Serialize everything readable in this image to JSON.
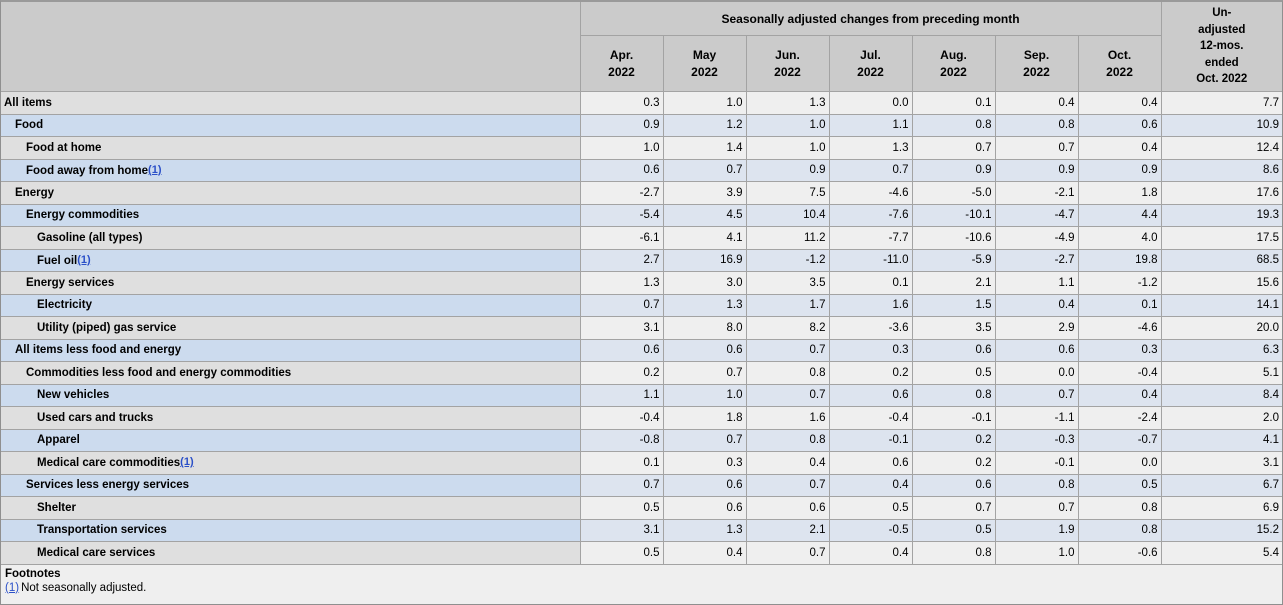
{
  "header": {
    "span_title": "Seasonally adjusted changes from preceding month",
    "months": [
      "Apr.",
      "May",
      "Jun.",
      "Jul.",
      "Aug.",
      "Sep.",
      "Oct."
    ],
    "year": "2022",
    "unadjusted_lines": [
      "Un-",
      "adjusted",
      "12-mos.",
      "ended",
      "Oct. 2022"
    ]
  },
  "rows": [
    {
      "label": "All items",
      "indent": 0,
      "footnote_marker": null,
      "values": [
        "0.3",
        "1.0",
        "1.3",
        "0.0",
        "0.1",
        "0.4",
        "0.4"
      ],
      "unadjusted_12mo": "7.7"
    },
    {
      "label": "Food",
      "indent": 1,
      "footnote_marker": null,
      "values": [
        "0.9",
        "1.2",
        "1.0",
        "1.1",
        "0.8",
        "0.8",
        "0.6"
      ],
      "unadjusted_12mo": "10.9"
    },
    {
      "label": "Food at home",
      "indent": 2,
      "footnote_marker": null,
      "values": [
        "1.0",
        "1.4",
        "1.0",
        "1.3",
        "0.7",
        "0.7",
        "0.4"
      ],
      "unadjusted_12mo": "12.4"
    },
    {
      "label": "Food away from home",
      "indent": 2,
      "footnote_marker": "(1)",
      "values": [
        "0.6",
        "0.7",
        "0.9",
        "0.7",
        "0.9",
        "0.9",
        "0.9"
      ],
      "unadjusted_12mo": "8.6"
    },
    {
      "label": "Energy",
      "indent": 1,
      "footnote_marker": null,
      "values": [
        "-2.7",
        "3.9",
        "7.5",
        "-4.6",
        "-5.0",
        "-2.1",
        "1.8"
      ],
      "unadjusted_12mo": "17.6"
    },
    {
      "label": "Energy commodities",
      "indent": 2,
      "footnote_marker": null,
      "values": [
        "-5.4",
        "4.5",
        "10.4",
        "-7.6",
        "-10.1",
        "-4.7",
        "4.4"
      ],
      "unadjusted_12mo": "19.3"
    },
    {
      "label": "Gasoline (all types)",
      "indent": 3,
      "footnote_marker": null,
      "values": [
        "-6.1",
        "4.1",
        "11.2",
        "-7.7",
        "-10.6",
        "-4.9",
        "4.0"
      ],
      "unadjusted_12mo": "17.5"
    },
    {
      "label": "Fuel oil",
      "indent": 3,
      "footnote_marker": "(1)",
      "values": [
        "2.7",
        "16.9",
        "-1.2",
        "-11.0",
        "-5.9",
        "-2.7",
        "19.8"
      ],
      "unadjusted_12mo": "68.5"
    },
    {
      "label": "Energy services",
      "indent": 2,
      "footnote_marker": null,
      "values": [
        "1.3",
        "3.0",
        "3.5",
        "0.1",
        "2.1",
        "1.1",
        "-1.2"
      ],
      "unadjusted_12mo": "15.6"
    },
    {
      "label": "Electricity",
      "indent": 3,
      "footnote_marker": null,
      "values": [
        "0.7",
        "1.3",
        "1.7",
        "1.6",
        "1.5",
        "0.4",
        "0.1"
      ],
      "unadjusted_12mo": "14.1"
    },
    {
      "label": "Utility (piped) gas service",
      "indent": 3,
      "footnote_marker": null,
      "values": [
        "3.1",
        "8.0",
        "8.2",
        "-3.6",
        "3.5",
        "2.9",
        "-4.6"
      ],
      "unadjusted_12mo": "20.0"
    },
    {
      "label": "All items less food and energy",
      "indent": 1,
      "footnote_marker": null,
      "values": [
        "0.6",
        "0.6",
        "0.7",
        "0.3",
        "0.6",
        "0.6",
        "0.3"
      ],
      "unadjusted_12mo": "6.3"
    },
    {
      "label": "Commodities less food and energy commodities",
      "indent": 2,
      "footnote_marker": null,
      "values": [
        "0.2",
        "0.7",
        "0.8",
        "0.2",
        "0.5",
        "0.0",
        "-0.4"
      ],
      "unadjusted_12mo": "5.1"
    },
    {
      "label": "New vehicles",
      "indent": 3,
      "footnote_marker": null,
      "values": [
        "1.1",
        "1.0",
        "0.7",
        "0.6",
        "0.8",
        "0.7",
        "0.4"
      ],
      "unadjusted_12mo": "8.4"
    },
    {
      "label": "Used cars and trucks",
      "indent": 3,
      "footnote_marker": null,
      "values": [
        "-0.4",
        "1.8",
        "1.6",
        "-0.4",
        "-0.1",
        "-1.1",
        "-2.4"
      ],
      "unadjusted_12mo": "2.0"
    },
    {
      "label": "Apparel",
      "indent": 3,
      "footnote_marker": null,
      "values": [
        "-0.8",
        "0.7",
        "0.8",
        "-0.1",
        "0.2",
        "-0.3",
        "-0.7"
      ],
      "unadjusted_12mo": "4.1"
    },
    {
      "label": "Medical care commodities",
      "indent": 3,
      "footnote_marker": "(1)",
      "values": [
        "0.1",
        "0.3",
        "0.4",
        "0.6",
        "0.2",
        "-0.1",
        "0.0"
      ],
      "unadjusted_12mo": "3.1"
    },
    {
      "label": "Services less energy services",
      "indent": 2,
      "footnote_marker": null,
      "values": [
        "0.7",
        "0.6",
        "0.7",
        "0.4",
        "0.6",
        "0.8",
        "0.5"
      ],
      "unadjusted_12mo": "6.7"
    },
    {
      "label": "Shelter",
      "indent": 3,
      "footnote_marker": null,
      "values": [
        "0.5",
        "0.6",
        "0.6",
        "0.5",
        "0.7",
        "0.7",
        "0.8"
      ],
      "unadjusted_12mo": "6.9"
    },
    {
      "label": "Transportation services",
      "indent": 3,
      "footnote_marker": null,
      "values": [
        "3.1",
        "1.3",
        "2.1",
        "-0.5",
        "0.5",
        "1.9",
        "0.8"
      ],
      "unadjusted_12mo": "15.2"
    },
    {
      "label": "Medical care services",
      "indent": 3,
      "footnote_marker": null,
      "values": [
        "0.5",
        "0.4",
        "0.7",
        "0.4",
        "0.8",
        "1.0",
        "-0.6"
      ],
      "unadjusted_12mo": "5.4"
    }
  ],
  "footnotes": {
    "heading": "Footnotes",
    "items": [
      {
        "marker": "(1)",
        "text": "Not seasonally adjusted."
      }
    ]
  },
  "colors": {
    "header_gray": "#cbcbcb",
    "stub_row_gray": "#dfdfdf",
    "data_row_gray": "#efefef",
    "stub_row_blue": "#ccdbee",
    "data_row_blue": "#dde4ef",
    "grid_line": "#a3a3a3",
    "footnote_link_blue": "#2b50c8"
  }
}
